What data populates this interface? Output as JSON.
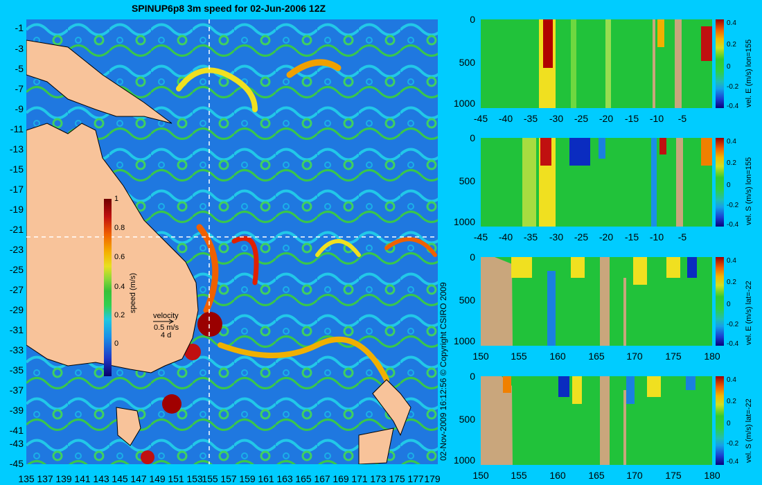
{
  "title": "SPINUP6p8 3m speed for 02-Jun-2006 12Z",
  "map": {
    "y_ticks": [
      "-1",
      "-3",
      "-5",
      "-7",
      "-9",
      "-11",
      "-13",
      "-15",
      "-17",
      "-19",
      "-21",
      "-23",
      "-25",
      "-27",
      "-29",
      "-31",
      "-33",
      "-35",
      "-37",
      "-39",
      "-41",
      "-43",
      "-45"
    ],
    "x_ticks": [
      "135",
      "137",
      "139",
      "141",
      "143",
      "145",
      "147",
      "149",
      "151",
      "153",
      "155",
      "157",
      "159",
      "161",
      "163",
      "165",
      "167",
      "169",
      "171",
      "173",
      "175",
      "177",
      "179"
    ],
    "colorbar": {
      "title": "speed (m/s)",
      "labels": [
        "1",
        "0.8",
        "0.6",
        "0.4",
        "0.2",
        "0"
      ]
    },
    "velocity_legend": {
      "title": "velocity",
      "speed": "0.5 m/s",
      "duration": "4 d"
    },
    "copyright": "02-Nov-2009 16:12:56   © Copyright CSIRO 2009",
    "colors": {
      "land": "#f8c39a",
      "ocean_low": "#1f78e0",
      "ocean_high": "#b00000",
      "guide_line": "#ffffff"
    }
  },
  "sections": [
    {
      "title": "vel. E (m/s) lon=155",
      "x_ticks": [
        "-45",
        "-40",
        "-35",
        "-30",
        "-25",
        "-20",
        "-15",
        "-10",
        "-5"
      ],
      "y_ticks": [
        "0",
        "500",
        "1000"
      ],
      "cb_labels": [
        "0.4",
        "0.2",
        "0",
        "-0.2",
        "-0.4"
      ]
    },
    {
      "title": "vel. S (m/s) lon=155",
      "x_ticks": [
        "-45",
        "-40",
        "-35",
        "-30",
        "-25",
        "-20",
        "-15",
        "-10",
        "-5"
      ],
      "y_ticks": [
        "0",
        "500",
        "1000"
      ],
      "cb_labels": [
        "0.4",
        "0.2",
        "0",
        "-0.2",
        "-0.4"
      ]
    },
    {
      "title": "vel. E (m/s) lat=-22",
      "x_ticks": [
        "150",
        "155",
        "160",
        "165",
        "170",
        "175",
        "180"
      ],
      "y_ticks": [
        "0",
        "500",
        "1000"
      ],
      "cb_labels": [
        "0.4",
        "0.2",
        "0",
        "-0.2",
        "-0.4"
      ]
    },
    {
      "title": "vel. S (m/s) lat=-22",
      "x_ticks": [
        "150",
        "155",
        "160",
        "165",
        "170",
        "175",
        "180"
      ],
      "y_ticks": [
        "0",
        "500",
        "1000"
      ],
      "cb_labels": [
        "0.4",
        "0.2",
        "0",
        "-0.2",
        "-0.4"
      ]
    }
  ]
}
